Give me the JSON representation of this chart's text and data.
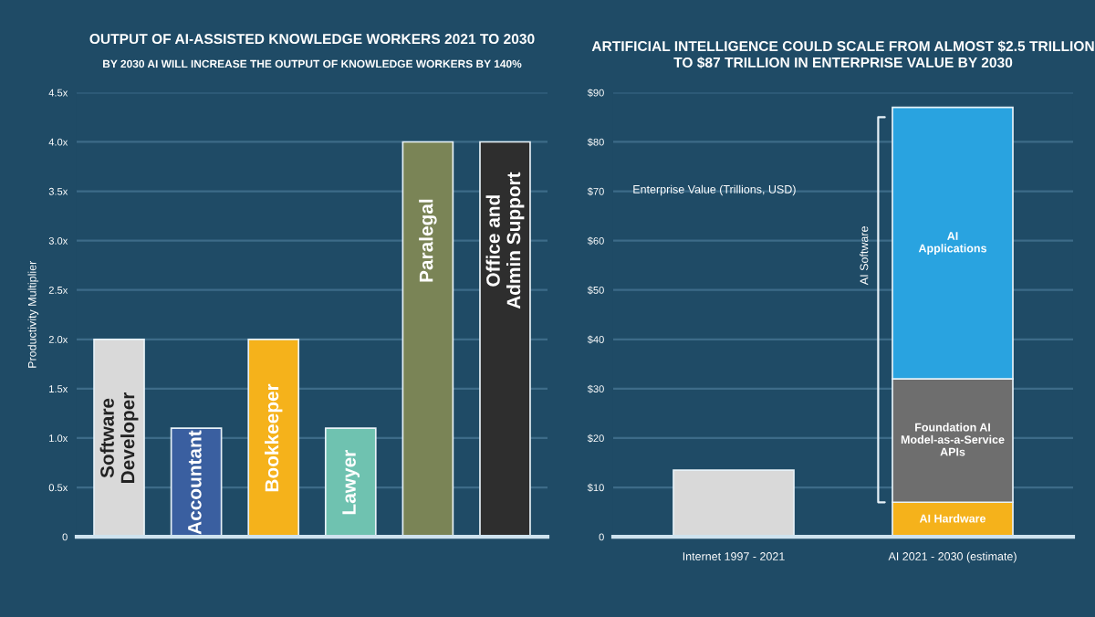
{
  "chart_data": [
    {
      "type": "bar",
      "title": "OUTPUT OF AI-ASSISTED KNOWLEDGE WORKERS 2021 TO 2030",
      "subtitle": "BY 2030 AI WILL INCREASE THE OUTPUT OF KNOWLEDGE WORKERS BY 140%",
      "ylabel": "Productivity Multiplier",
      "categories": [
        "Software\nDeveloper",
        "Accountant",
        "Bookkeeper",
        "Lawyer",
        "Paralegal",
        "Office and\nAdmin Support"
      ],
      "values": [
        2.0,
        1.1,
        2.0,
        1.1,
        4.0,
        4.0
      ],
      "colors": [
        "#d9d9d9",
        "#3a5fa0",
        "#f5b21b",
        "#6fc2b0",
        "#7a8456",
        "#2e2e2e"
      ],
      "ylim": [
        0,
        4.5
      ],
      "yticks": [
        0,
        {
          "value": 0.5,
          "label": "0.5x"
        },
        {
          "value": 1,
          "label": "1.0x"
        },
        {
          "value": 1.5,
          "label": "1.5x"
        },
        {
          "value": 2,
          "label": "2.0x"
        },
        {
          "value": 2.5,
          "label": "2.5x"
        },
        {
          "value": 3,
          "label": "3.0x"
        },
        {
          "value": 3.5,
          "label": "3.5x"
        },
        {
          "value": 4,
          "label": "4.0x"
        },
        {
          "value": 4.5,
          "label": "4.5x"
        }
      ],
      "grid": "y",
      "tick_labels": "y"
    },
    {
      "type": "bar",
      "title": "ARTIFICIAL INTELLIGENCE COULD SCALE FROM ALMOST $2.5 TRILLION\nTO $87 TRILLION IN ENTERPRISE VALUE BY 2030",
      "stacked": true,
      "categories": [
        "Internet 1997 - 2021",
        "AI 2021 - 2030 (estimate)"
      ],
      "series": [
        {
          "color": "#d9d9d9",
          "values": [
            13.5,
            null
          ]
        },
        {
          "name": "AI Hardware",
          "color": "#f5b21b",
          "values": [
            null,
            7
          ]
        },
        {
          "name": "Foundation AI\nModel-as-a-Service\nAPIs",
          "color": "#6e6e6e",
          "values": [
            null,
            25
          ]
        },
        {
          "name": "AI\nApplications",
          "color": "#29a3e0",
          "values": [
            null,
            55
          ]
        }
      ],
      "ylim": [
        0,
        90
      ],
      "yticks": [
        0,
        {
          "value": 10,
          "label": "$10"
        },
        {
          "value": 20,
          "label": "$20"
        },
        {
          "value": 30,
          "label": "$30"
        },
        {
          "value": 40,
          "label": "$40"
        },
        {
          "value": 50,
          "label": "$50"
        },
        {
          "value": 60,
          "label": "$60"
        },
        {
          "value": 70,
          "label": "$70"
        },
        {
          "value": 80,
          "label": "$80"
        },
        {
          "value": 90,
          "label": "$90"
        }
      ],
      "annotations": [
        "Enterprise Value (Trillions, USD)",
        "AI Software"
      ],
      "grid": "y"
    }
  ]
}
